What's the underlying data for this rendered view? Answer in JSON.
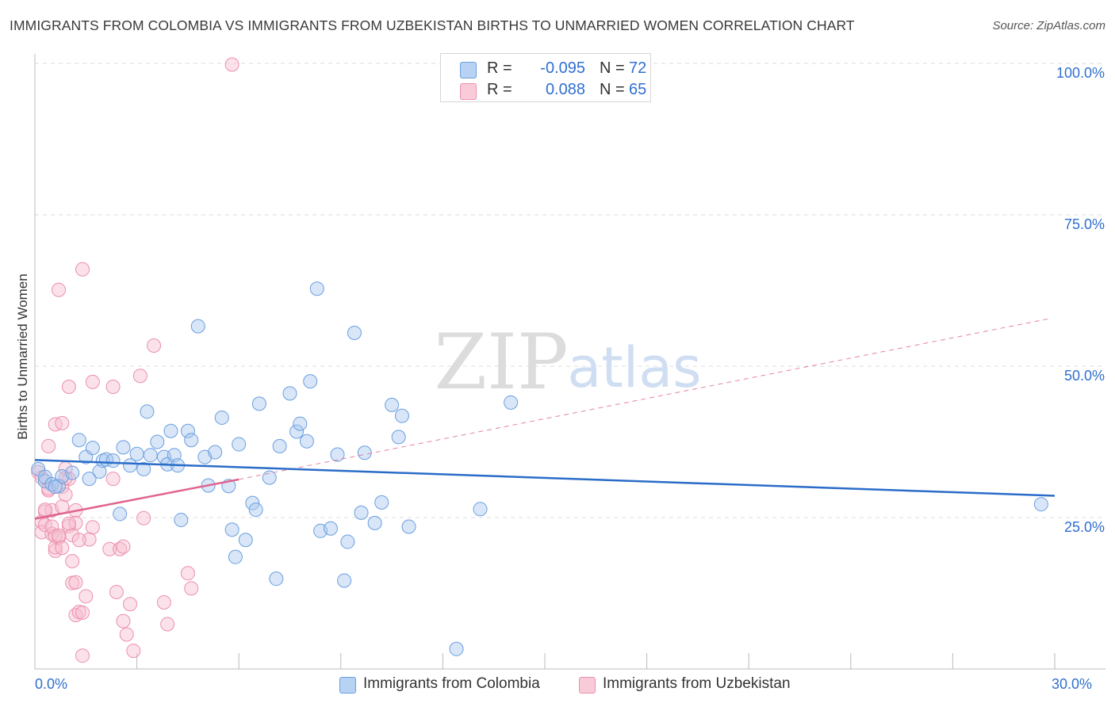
{
  "title": "IMMIGRANTS FROM COLOMBIA VS IMMIGRANTS FROM UZBEKISTAN BIRTHS TO UNMARRIED WOMEN CORRELATION CHART",
  "source": "Source: ZipAtlas.com",
  "watermark": {
    "zip": "ZIP",
    "atlas": "atlas"
  },
  "legend_top": [
    {
      "r_label": "R =",
      "r_value": "-0.095",
      "n_label": "N =",
      "n_value": "72"
    },
    {
      "r_label": "R =",
      "r_value": "0.088",
      "n_label": "N =",
      "n_value": "65"
    }
  ],
  "legend_bottom": [
    "Immigrants from Colombia",
    "Immigrants from Uzbekistan"
  ],
  "x_tick_labels": {
    "left": "0.0%",
    "right": "30.0%"
  },
  "colors": {
    "colombia_fill": "#a9c8ef",
    "colombia_stroke": "#6a9fe0",
    "colombia_line": "#2a6cc8",
    "uzbekistan_fill": "#f7bfd0",
    "uzbekistan_stroke": "#ec8fac",
    "uzbekistan_line": "#e0648e",
    "axis_label": "#2f6fcf",
    "grid": "#dddddd"
  },
  "chart_data": {
    "type": "scatter",
    "title": "IMMIGRANTS FROM COLOMBIA VS IMMIGRANTS FROM UZBEKISTAN BIRTHS TO UNMARRIED WOMEN CORRELATION CHART",
    "xlabel": "",
    "ylabel": "Births to Unmarried Women",
    "xlim": [
      0,
      30
    ],
    "ylim": [
      0,
      100
    ],
    "y_ticks": [
      {
        "value": 25,
        "label": "25.0%"
      },
      {
        "value": 50,
        "label": "50.0%"
      },
      {
        "value": 75,
        "label": "75.0%"
      },
      {
        "value": 100,
        "label": "100.0%"
      }
    ],
    "x_ticks_minor": [
      0,
      3,
      6,
      9,
      12,
      15,
      18,
      21,
      24,
      27,
      30
    ],
    "series": [
      {
        "name": "Immigrants from Colombia",
        "r": -0.095,
        "n": 72,
        "trend": {
          "x": [
            0,
            30
          ],
          "y": [
            34.5,
            28.6
          ],
          "style": "solid"
        },
        "points": [
          [
            0.1,
            33.0
          ],
          [
            0.3,
            31.0
          ],
          [
            0.3,
            31.7
          ],
          [
            0.5,
            30.5
          ],
          [
            0.7,
            30.2
          ],
          [
            0.8,
            31.8
          ],
          [
            1.1,
            32.4
          ],
          [
            1.3,
            37.8
          ],
          [
            1.5,
            35.0
          ],
          [
            1.6,
            31.4
          ],
          [
            1.7,
            36.5
          ],
          [
            1.9,
            32.6
          ],
          [
            2.0,
            34.4
          ],
          [
            2.1,
            34.6
          ],
          [
            2.3,
            34.4
          ],
          [
            2.5,
            25.6
          ],
          [
            2.6,
            36.6
          ],
          [
            2.8,
            33.6
          ],
          [
            3.0,
            35.5
          ],
          [
            3.2,
            33.0
          ],
          [
            3.3,
            42.5
          ],
          [
            3.4,
            35.3
          ],
          [
            3.6,
            37.5
          ],
          [
            3.8,
            35.0
          ],
          [
            3.9,
            33.8
          ],
          [
            4.0,
            39.3
          ],
          [
            4.1,
            35.3
          ],
          [
            4.2,
            33.6
          ],
          [
            4.3,
            24.6
          ],
          [
            4.5,
            39.3
          ],
          [
            4.6,
            37.8
          ],
          [
            4.8,
            56.6
          ],
          [
            5.0,
            35.0
          ],
          [
            5.1,
            30.3
          ],
          [
            5.3,
            35.8
          ],
          [
            5.5,
            41.5
          ],
          [
            5.7,
            30.2
          ],
          [
            5.8,
            23.0
          ],
          [
            5.9,
            18.5
          ],
          [
            6.0,
            37.1
          ],
          [
            6.2,
            21.3
          ],
          [
            6.4,
            27.4
          ],
          [
            6.5,
            26.3
          ],
          [
            6.6,
            43.8
          ],
          [
            6.9,
            31.6
          ],
          [
            7.2,
            36.8
          ],
          [
            7.5,
            45.5
          ],
          [
            7.7,
            39.2
          ],
          [
            7.8,
            40.5
          ],
          [
            8.0,
            37.6
          ],
          [
            8.1,
            47.5
          ],
          [
            8.3,
            62.8
          ],
          [
            8.4,
            22.8
          ],
          [
            8.7,
            23.2
          ],
          [
            8.9,
            35.4
          ],
          [
            9.1,
            14.6
          ],
          [
            9.2,
            21.0
          ],
          [
            9.4,
            55.5
          ],
          [
            9.6,
            25.8
          ],
          [
            9.7,
            35.7
          ],
          [
            10.0,
            24.1
          ],
          [
            10.2,
            27.5
          ],
          [
            10.5,
            43.6
          ],
          [
            10.8,
            41.8
          ],
          [
            10.7,
            38.3
          ],
          [
            11.0,
            23.5
          ],
          [
            12.4,
            3.3
          ],
          [
            13.1,
            26.4
          ],
          [
            14.0,
            44.0
          ],
          [
            7.1,
            14.9
          ],
          [
            29.6,
            27.2
          ],
          [
            0.6,
            30.1
          ]
        ]
      },
      {
        "name": "Immigrants from Uzbekistan",
        "r": 0.088,
        "n": 65,
        "trend": {
          "x": [
            0,
            6.0
          ],
          "y": [
            24.8,
            31.3
          ],
          "style": "solid",
          "dashed_extension": {
            "x": [
              6.0,
              29.8
            ],
            "y": [
              31.3,
              57.8
            ]
          }
        },
        "points": [
          [
            0.1,
            32.5
          ],
          [
            0.2,
            24.3
          ],
          [
            0.2,
            22.6
          ],
          [
            0.3,
            26.0
          ],
          [
            0.3,
            23.8
          ],
          [
            0.4,
            36.8
          ],
          [
            0.4,
            29.5
          ],
          [
            0.5,
            26.2
          ],
          [
            0.5,
            22.3
          ],
          [
            0.6,
            19.5
          ],
          [
            0.6,
            40.4
          ],
          [
            0.7,
            21.7
          ],
          [
            0.7,
            62.6
          ],
          [
            0.8,
            40.6
          ],
          [
            0.8,
            26.8
          ],
          [
            0.8,
            30.1
          ],
          [
            0.9,
            28.8
          ],
          [
            0.9,
            33.1
          ],
          [
            1.0,
            46.6
          ],
          [
            1.0,
            31.4
          ],
          [
            1.0,
            23.6
          ],
          [
            1.1,
            14.2
          ],
          [
            1.1,
            17.8
          ],
          [
            1.1,
            22.1
          ],
          [
            1.2,
            8.9
          ],
          [
            1.2,
            14.3
          ],
          [
            1.2,
            26.2
          ],
          [
            1.2,
            24.1
          ],
          [
            1.3,
            9.4
          ],
          [
            1.4,
            66.0
          ],
          [
            1.4,
            9.3
          ],
          [
            1.4,
            2.2
          ],
          [
            1.5,
            12.0
          ],
          [
            1.6,
            21.4
          ],
          [
            1.7,
            23.4
          ],
          [
            1.7,
            47.4
          ],
          [
            2.2,
            19.8
          ],
          [
            2.3,
            31.4
          ],
          [
            2.3,
            46.6
          ],
          [
            2.4,
            12.7
          ],
          [
            2.5,
            19.8
          ],
          [
            2.6,
            20.2
          ],
          [
            2.6,
            7.9
          ],
          [
            2.7,
            5.7
          ],
          [
            2.8,
            10.7
          ],
          [
            2.9,
            3.0
          ],
          [
            3.1,
            48.4
          ],
          [
            3.2,
            24.9
          ],
          [
            3.5,
            53.4
          ],
          [
            3.8,
            11.0
          ],
          [
            3.9,
            7.4
          ],
          [
            4.5,
            15.8
          ],
          [
            4.6,
            13.3
          ],
          [
            0.3,
            26.3
          ],
          [
            0.4,
            29.8
          ],
          [
            0.5,
            23.5
          ],
          [
            0.6,
            20.1
          ],
          [
            0.6,
            21.9
          ],
          [
            0.7,
            22.0
          ],
          [
            0.8,
            20.0
          ],
          [
            0.9,
            31.5
          ],
          [
            1.0,
            24.0
          ],
          [
            1.3,
            21.3
          ],
          [
            5.8,
            99.8
          ],
          [
            0.2,
            31.6
          ]
        ]
      }
    ]
  }
}
